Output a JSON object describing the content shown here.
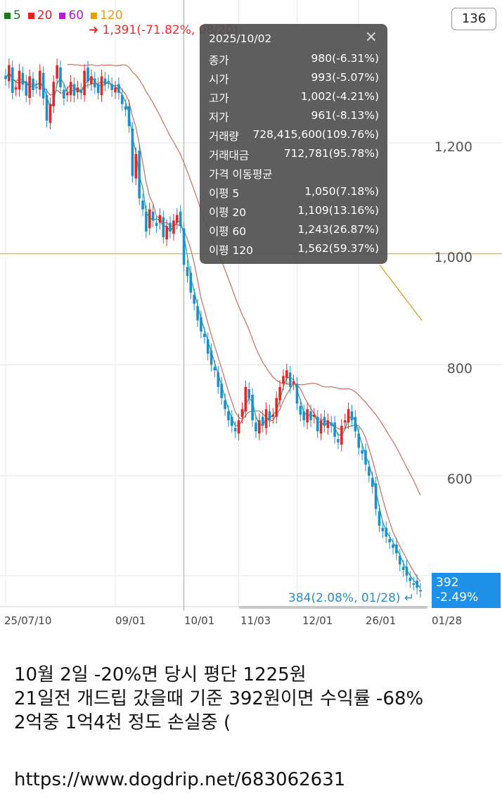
{
  "legend": [
    {
      "label": "5",
      "color": "#1a7a1a"
    },
    {
      "label": "20",
      "color": "#e02020"
    },
    {
      "label": "60",
      "color": "#b020d0"
    },
    {
      "label": "120",
      "color": "#e8a000"
    }
  ],
  "count_badge": "136",
  "max_note": "➜ 1,391(-71.82%, 08/20)",
  "min_note": "384(2.08%, 01/28) ↵",
  "current_price": "392",
  "current_change": "-2.49%",
  "tooltip": {
    "date": "2025/10/02",
    "close_icon": "×",
    "section": "가격 이동평균",
    "rows": [
      {
        "k": "종가",
        "v": "980(-6.31%)"
      },
      {
        "k": "시가",
        "v": "993(-5.07%)"
      },
      {
        "k": "고가",
        "v": "1,002(-4.21%)"
      },
      {
        "k": "저가",
        "v": "961(-8.13%)"
      },
      {
        "k": "거래량",
        "v": "728,415,600(109.76%)"
      },
      {
        "k": "거래대금",
        "v": "712,781(95.78%)"
      }
    ],
    "ma_rows": [
      {
        "k": "이평 5",
        "v": "1,050(7.18%)"
      },
      {
        "k": "이평 20",
        "v": "1,109(13.16%)"
      },
      {
        "k": "이평 60",
        "v": "1,243(26.87%)"
      },
      {
        "k": "이평 120",
        "v": "1,562(59.37%)"
      }
    ]
  },
  "caption": {
    "line1": "10월 2일 -20%면 당시 평단 1225원",
    "line2": "21일전 개드립 갔을때 기준 392원이면 수익률 -68%",
    "line3": "2억중 1억4천 정도 손실중 (",
    "url": "https://www.dogdrip.net/683062631"
  },
  "chart_data": {
    "type": "candlestick",
    "ylim": [
      380,
      1420
    ],
    "yticks": [
      1200,
      1000,
      800,
      600
    ],
    "ytick_labels": [
      "1,200",
      "1,000",
      "800",
      "600"
    ],
    "xtick_labels": [
      "25/07/10",
      "09/01",
      "10/01",
      "11/03",
      "12/01",
      "26/01",
      "01/28"
    ],
    "xtick_index": [
      0,
      32,
      52,
      68,
      85,
      103,
      121
    ],
    "crosshair": {
      "index": 52,
      "price": 1000
    },
    "colors": {
      "up": "#e02828",
      "down": "#1f8fc8",
      "ma5": "#2aa890",
      "ma20": "#c87868",
      "ma60": "#c8a010"
    },
    "closes": [
      1315,
      1340,
      1290,
      1300,
      1330,
      1305,
      1285,
      1320,
      1295,
      1300,
      1330,
      1280,
      1240,
      1270,
      1310,
      1340,
      1300,
      1280,
      1290,
      1310,
      1285,
      1300,
      1290,
      1330,
      1310,
      1320,
      1300,
      1290,
      1320,
      1305,
      1310,
      1295,
      1300,
      1290,
      1270,
      1260,
      1230,
      1140,
      1180,
      1100,
      1080,
      1040,
      1080,
      1060,
      1050,
      1070,
      1030,
      1050,
      1040,
      1060,
      1070,
      1050,
      980,
      960,
      930,
      910,
      880,
      860,
      850,
      820,
      800,
      790,
      760,
      740,
      720,
      700,
      690,
      680,
      700,
      720,
      760,
      740,
      700,
      680,
      700,
      690,
      720,
      700,
      710,
      740,
      760,
      780,
      790,
      760,
      770,
      730,
      710,
      700,
      720,
      700,
      710,
      680,
      700,
      690,
      700,
      690,
      670,
      660,
      690,
      700,
      720,
      700,
      680,
      650,
      640,
      620,
      600,
      580,
      540,
      510,
      500,
      490,
      480,
      470,
      460,
      440,
      430,
      420,
      410,
      405,
      398,
      392
    ],
    "ma5_label": "이평 5",
    "ma20_label": "이평 20",
    "ma60_label": "이평 60"
  }
}
